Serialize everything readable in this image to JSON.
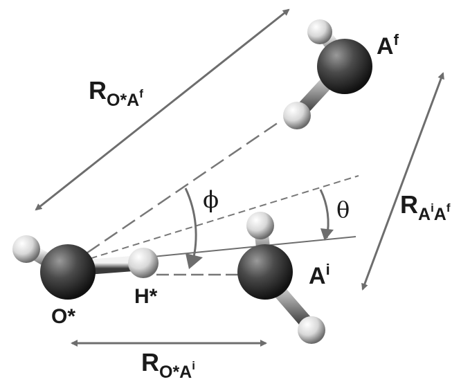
{
  "labels": {
    "acceptor_final": {
      "base": "A",
      "sup": "f"
    },
    "acceptor_initial": {
      "base": "A",
      "sup": "i"
    },
    "donor_oxygen": "O*",
    "transferring_hydrogen": "H*",
    "angle_phi": "ϕ",
    "angle_theta": "θ",
    "distance_OAf": {
      "base": "R",
      "sub": "O*A",
      "subsup": "f"
    },
    "distance_AiAf": {
      "base": "R",
      "sub1": "A",
      "sub1sup": "i",
      "sub2": "A",
      "sub2sup": "f"
    },
    "distance_OAi": {
      "base": "R",
      "sub": "O*A",
      "subsup": "i"
    }
  },
  "colors": {
    "arrow": "#6d6d6d",
    "dashed_line": "#777777",
    "oxygen": "#3a3a3a",
    "hydrogen": "#e6e6e6",
    "text": "#1a1a1a"
  }
}
